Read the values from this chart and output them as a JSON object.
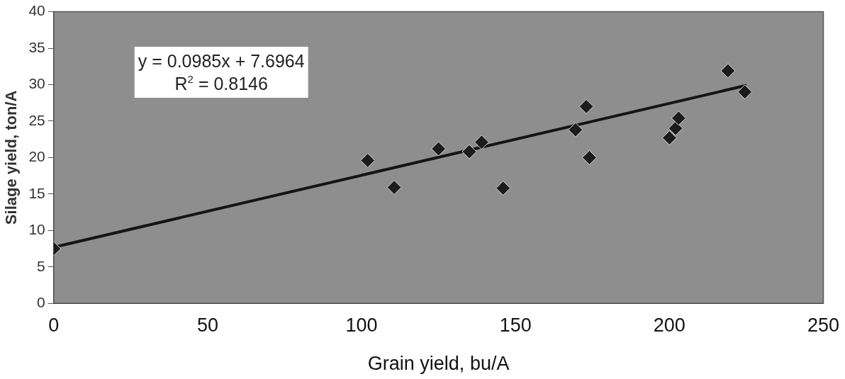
{
  "chart_data": {
    "type": "scatter",
    "xlabel": "Grain yield, bu/A",
    "ylabel": "Silage yield, ton/A",
    "xlim": [
      0,
      250
    ],
    "xticks": [
      0,
      50,
      100,
      150,
      200,
      250
    ],
    "ylim": [
      0,
      40
    ],
    "yticks": [
      0,
      5,
      10,
      15,
      20,
      25,
      30,
      35,
      40
    ],
    "grid": false,
    "legend": false,
    "marker": "diamond",
    "annotations": [
      "y = 0.0985x + 7.6964",
      "R$^{2}$ = 0.8146"
    ],
    "series": [
      {
        "type": "scatter",
        "color": "#1c1c1c",
        "x": [
          0,
          102,
          110.6,
          125,
          135,
          139,
          146,
          169.5,
          173,
          174,
          200,
          202,
          203,
          219,
          224.5
        ],
        "values": [
          7.5,
          19.6,
          15.9,
          21.2,
          20.8,
          22.1,
          15.8,
          23.8,
          27,
          20,
          22.7,
          24,
          25.4,
          31.9,
          29
        ]
      },
      {
        "type": "line",
        "color": "#141414",
        "line_style": "solid",
        "marker": "none",
        "x": [
          0,
          225
        ],
        "values": [
          7.7,
          29.9
        ]
      }
    ]
  }
}
